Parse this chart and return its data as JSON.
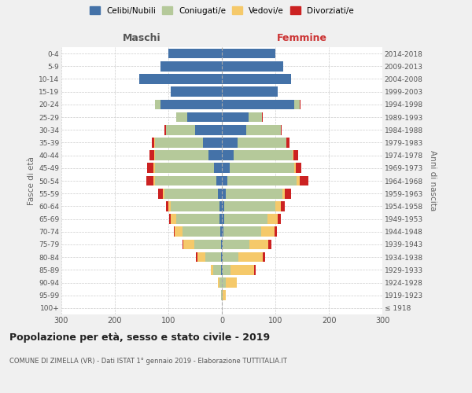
{
  "age_groups": [
    "100+",
    "95-99",
    "90-94",
    "85-89",
    "80-84",
    "75-79",
    "70-74",
    "65-69",
    "60-64",
    "55-59",
    "50-54",
    "45-49",
    "40-44",
    "35-39",
    "30-34",
    "25-29",
    "20-24",
    "15-19",
    "10-14",
    "5-9",
    "0-4"
  ],
  "birth_years": [
    "≤ 1918",
    "1919-1923",
    "1924-1928",
    "1929-1933",
    "1934-1938",
    "1939-1943",
    "1944-1948",
    "1949-1953",
    "1954-1958",
    "1959-1963",
    "1964-1968",
    "1969-1973",
    "1974-1978",
    "1979-1983",
    "1984-1988",
    "1989-1993",
    "1994-1998",
    "1999-2003",
    "2004-2008",
    "2009-2013",
    "2014-2018"
  ],
  "males": {
    "celibi": [
      0,
      0,
      0,
      1,
      1,
      2,
      3,
      5,
      5,
      8,
      10,
      15,
      25,
      35,
      50,
      65,
      115,
      95,
      155,
      115,
      100
    ],
    "coniugati": [
      0,
      2,
      5,
      15,
      30,
      50,
      70,
      80,
      90,
      100,
      115,
      110,
      100,
      90,
      55,
      20,
      10,
      0,
      0,
      0,
      0
    ],
    "vedovi": [
      0,
      0,
      3,
      5,
      15,
      20,
      15,
      10,
      5,
      3,
      3,
      3,
      2,
      1,
      0,
      0,
      0,
      0,
      0,
      0,
      0
    ],
    "divorziati": [
      0,
      0,
      0,
      0,
      2,
      2,
      2,
      3,
      5,
      8,
      13,
      12,
      8,
      5,
      2,
      0,
      0,
      0,
      0,
      0,
      0
    ]
  },
  "females": {
    "nubili": [
      0,
      0,
      0,
      1,
      1,
      2,
      3,
      5,
      5,
      8,
      10,
      15,
      22,
      30,
      45,
      50,
      135,
      105,
      130,
      115,
      100
    ],
    "coniugate": [
      0,
      2,
      8,
      15,
      30,
      50,
      70,
      80,
      95,
      105,
      130,
      120,
      110,
      90,
      65,
      25,
      10,
      0,
      0,
      0,
      0
    ],
    "vedove": [
      0,
      5,
      20,
      45,
      45,
      35,
      25,
      20,
      10,
      5,
      5,
      3,
      2,
      1,
      0,
      0,
      0,
      0,
      0,
      0,
      0
    ],
    "divorziate": [
      0,
      0,
      0,
      2,
      5,
      5,
      5,
      5,
      8,
      12,
      17,
      10,
      8,
      6,
      2,
      2,
      2,
      0,
      0,
      0,
      0
    ]
  },
  "colors": {
    "celibi": "#4472a8",
    "coniugati": "#b5c99a",
    "vedovi": "#f5c96a",
    "divorziati": "#cc2222"
  },
  "legend_labels": [
    "Celibi/Nubili",
    "Coniugati/e",
    "Vedovi/e",
    "Divorziati/e"
  ],
  "title": "Popolazione per età, sesso e stato civile - 2019",
  "subtitle": "COMUNE DI ZIMELLA (VR) - Dati ISTAT 1° gennaio 2019 - Elaborazione TUTTITALIA.IT",
  "xlabel_left": "Maschi",
  "xlabel_right": "Femmine",
  "ylabel_left": "Fasce di età",
  "ylabel_right": "Anni di nascita",
  "xlim": 300,
  "bg_color": "#f0f0f0",
  "plot_bg": "#ffffff",
  "grid_color": "#cccccc"
}
